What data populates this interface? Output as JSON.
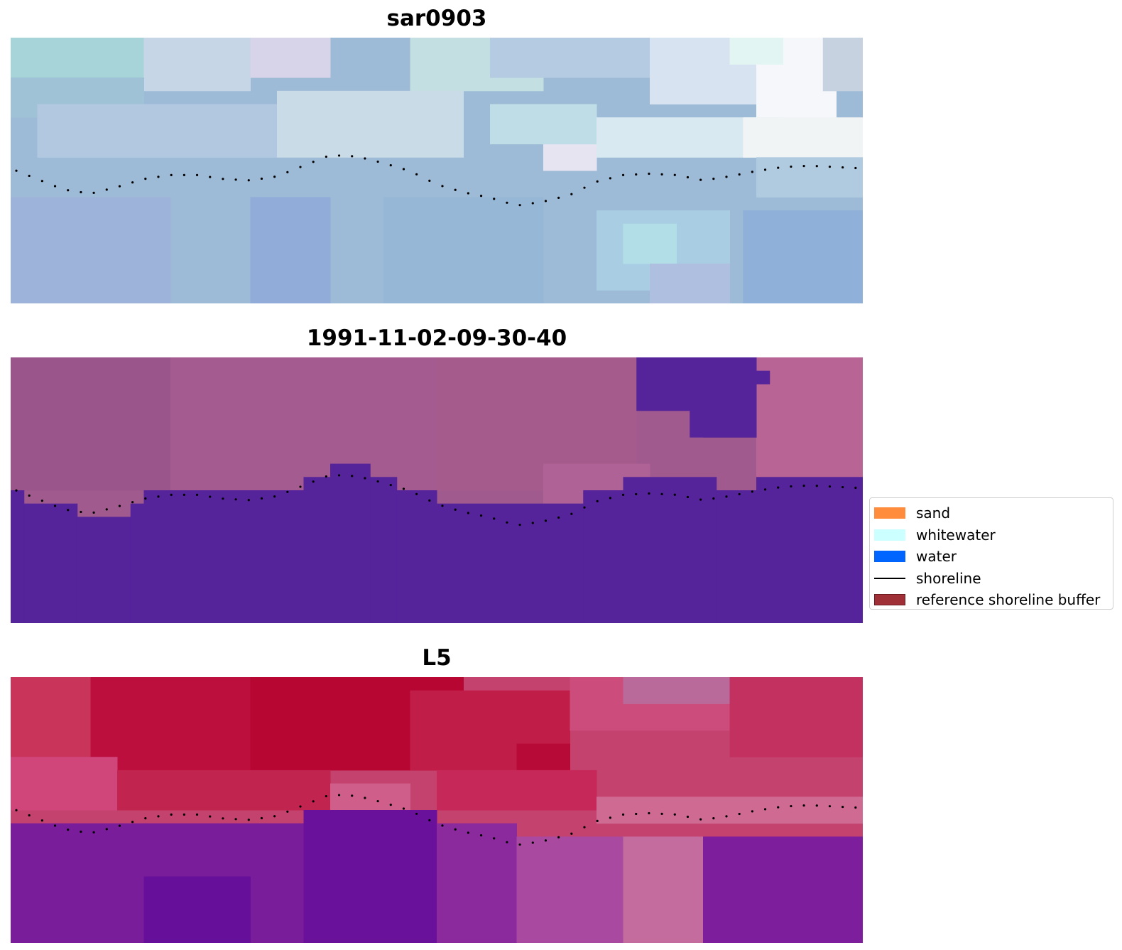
{
  "panels": [
    {
      "title": "sar0903",
      "base_color": "#9dbad6",
      "tiles": [
        {
          "c": "#a7d4d8",
          "cells": [
            [
              0,
              0,
              10,
              3
            ]
          ]
        },
        {
          "c": "#c6d6e6",
          "cells": [
            [
              10,
              0,
              8,
              4
            ]
          ]
        },
        {
          "c": "#d7d3e8",
          "cells": [
            [
              18,
              0,
              6,
              3
            ]
          ]
        },
        {
          "c": "#c3dfe2",
          "cells": [
            [
              30,
              0,
              10,
              4
            ]
          ]
        },
        {
          "c": "#b5cbe1",
          "cells": [
            [
              36,
              0,
              12,
              3
            ]
          ]
        },
        {
          "c": "#d8e3f2",
          "cells": [
            [
              48,
              0,
              8,
              5
            ]
          ]
        },
        {
          "c": "#f5f7fb",
          "cells": [
            [
              56,
              0,
              6,
              6
            ]
          ]
        },
        {
          "c": "#e3f5f2",
          "cells": [
            [
              54,
              0,
              4,
              2
            ]
          ]
        },
        {
          "c": "#c6d2e0",
          "cells": [
            [
              61,
              0,
              3,
              4
            ]
          ]
        },
        {
          "c": "#9fc2d6",
          "cells": [
            [
              0,
              3,
              10,
              3
            ]
          ]
        },
        {
          "c": "#b2c8e1",
          "cells": [
            [
              2,
              5,
              18,
              4
            ]
          ]
        },
        {
          "c": "#c9dbe7",
          "cells": [
            [
              20,
              4,
              14,
              5
            ]
          ]
        },
        {
          "c": "#e7e4f2",
          "cells": [
            [
              40,
              8,
              4,
              2
            ]
          ]
        },
        {
          "c": "#bfdde6",
          "cells": [
            [
              36,
              5,
              8,
              3
            ]
          ]
        },
        {
          "c": "#d9e9f1",
          "cells": [
            [
              44,
              6,
              14,
              3
            ]
          ]
        },
        {
          "c": "#f1f4f4",
          "cells": [
            [
              55,
              6,
              9,
              3
            ]
          ]
        },
        {
          "c": "#b0cbe0",
          "cells": [
            [
              56,
              9,
              8,
              3
            ]
          ]
        },
        {
          "c": "#9eb3da",
          "cells": [
            [
              0,
              12,
              12,
              8
            ]
          ]
        },
        {
          "c": "#91acd8",
          "cells": [
            [
              18,
              12,
              6,
              8
            ]
          ]
        },
        {
          "c": "#96b7d6",
          "cells": [
            [
              28,
              12,
              12,
              8
            ]
          ]
        },
        {
          "c": "#a9cde3",
          "cells": [
            [
              44,
              13,
              10,
              6
            ]
          ]
        },
        {
          "c": "#b2dfe7",
          "cells": [
            [
              46,
              14,
              4,
              3
            ]
          ]
        },
        {
          "c": "#8fb0d9",
          "cells": [
            [
              55,
              13,
              9,
              7
            ]
          ]
        },
        {
          "c": "#aebfe0",
          "cells": [
            [
              48,
              17,
              6,
              3
            ]
          ]
        }
      ]
    },
    {
      "title": "1991-11-02-09-30-40",
      "base_color": "#a05a8e",
      "tiles": [
        {
          "c": "#9a558a",
          "cells": [
            [
              0,
              0,
              12,
              10
            ]
          ]
        },
        {
          "c": "#a45b8f",
          "cells": [
            [
              12,
              0,
              20,
              10
            ]
          ]
        },
        {
          "c": "#a65b8d",
          "cells": [
            [
              32,
              0,
              15,
              10
            ]
          ]
        },
        {
          "c": "#b86596",
          "cells": [
            [
              56,
              0,
              8,
              10
            ]
          ]
        },
        {
          "c": "#ae6295",
          "cells": [
            [
              40,
              8,
              8,
              3
            ]
          ]
        },
        {
          "c": "#55239a",
          "cells": [
            [
              47,
              0,
              9,
              4
            ],
            [
              51,
              4,
              5,
              2
            ],
            [
              56,
              1,
              1,
              1
            ],
            [
              52,
              5,
              4,
              1
            ]
          ]
        },
        {
          "c": "#55239a",
          "cells": [
            [
              0,
              10,
              1,
              10
            ],
            [
              1,
              11,
              4,
              9
            ],
            [
              5,
              12,
              4,
              8
            ],
            [
              9,
              11,
              1,
              9
            ],
            [
              10,
              10,
              12,
              10
            ],
            [
              22,
              9,
              2,
              11
            ],
            [
              24,
              8,
              3,
              12
            ],
            [
              27,
              9,
              2,
              11
            ],
            [
              29,
              10,
              3,
              10
            ],
            [
              32,
              11,
              11,
              9
            ],
            [
              43,
              10,
              3,
              10
            ],
            [
              46,
              9,
              7,
              11
            ],
            [
              53,
              10,
              3,
              10
            ],
            [
              56,
              9,
              8,
              11
            ]
          ]
        }
      ]
    },
    {
      "title": "L5",
      "base_color": "#c4426e",
      "tiles": [
        {
          "c": "#c9345a",
          "cells": [
            [
              0,
              0,
              8,
              6
            ]
          ]
        },
        {
          "c": "#bd0f3d",
          "cells": [
            [
              6,
              0,
              12,
              7
            ]
          ]
        },
        {
          "c": "#b80633",
          "cells": [
            [
              18,
              0,
              16,
              7
            ]
          ]
        },
        {
          "c": "#c01e48",
          "cells": [
            [
              30,
              1,
              12,
              6
            ]
          ]
        },
        {
          "c": "#b80a37",
          "cells": [
            [
              38,
              5,
              4,
              3
            ]
          ]
        },
        {
          "c": "#cc4d7b",
          "cells": [
            [
              42,
              0,
              14,
              4
            ]
          ]
        },
        {
          "c": "#ba6a9a",
          "cells": [
            [
              46,
              0,
              8,
              2
            ]
          ]
        },
        {
          "c": "#c33161",
          "cells": [
            [
              54,
              0,
              10,
              6
            ]
          ]
        },
        {
          "c": "#d0467a",
          "cells": [
            [
              0,
              6,
              8,
              4
            ]
          ]
        },
        {
          "c": "#c0244f",
          "cells": [
            [
              8,
              7,
              16,
              3
            ]
          ]
        },
        {
          "c": "#cf5e8a",
          "cells": [
            [
              24,
              8,
              6,
              3
            ]
          ]
        },
        {
          "c": "#c6285a",
          "cells": [
            [
              32,
              7,
              12,
              3
            ]
          ]
        },
        {
          "c": "#cf6a93",
          "cells": [
            [
              44,
              9,
              20,
              2
            ]
          ]
        },
        {
          "c": "#7a1d9a",
          "cells": [
            [
              0,
              11,
              24,
              9
            ]
          ]
        },
        {
          "c": "#6a119c",
          "cells": [
            [
              22,
              10,
              10,
              10
            ]
          ]
        },
        {
          "c": "#8a2a9c",
          "cells": [
            [
              32,
              11,
              6,
              9
            ]
          ]
        },
        {
          "c": "#a94aa0",
          "cells": [
            [
              38,
              12,
              8,
              8
            ]
          ]
        },
        {
          "c": "#c56c9e",
          "cells": [
            [
              46,
              12,
              6,
              8
            ]
          ]
        },
        {
          "c": "#7d1f9c",
          "cells": [
            [
              52,
              12,
              12,
              8
            ]
          ]
        },
        {
          "c": "#650f9a",
          "cells": [
            [
              10,
              15,
              8,
              5
            ]
          ]
        }
      ]
    }
  ],
  "shoreline": {
    "color": "#000000",
    "points": [
      [
        0,
        10.0
      ],
      [
        2,
        10.8
      ],
      [
        4,
        11.6
      ],
      [
        6,
        11.9
      ],
      [
        8,
        11.4
      ],
      [
        10,
        10.8
      ],
      [
        12,
        10.5
      ],
      [
        14,
        10.5
      ],
      [
        16,
        10.8
      ],
      [
        18,
        10.9
      ],
      [
        20,
        10.6
      ],
      [
        22,
        9.8
      ],
      [
        24,
        9.0
      ],
      [
        26,
        9.1
      ],
      [
        28,
        9.6
      ],
      [
        30,
        10.2
      ],
      [
        32,
        11.2
      ],
      [
        34,
        11.8
      ],
      [
        36,
        12.2
      ],
      [
        38,
        12.8
      ],
      [
        40,
        12.5
      ],
      [
        42,
        12.0
      ],
      [
        44,
        11.0
      ],
      [
        46,
        10.5
      ],
      [
        48,
        10.4
      ],
      [
        50,
        10.5
      ],
      [
        52,
        10.9
      ],
      [
        54,
        10.6
      ],
      [
        56,
        10.2
      ],
      [
        58,
        9.9
      ],
      [
        60,
        9.8
      ],
      [
        62,
        9.9
      ],
      [
        64,
        10.0
      ]
    ]
  },
  "legend": [
    {
      "label": "sand",
      "type": "patch",
      "color": "#ff8c3c",
      "edge": "#ff8c3c"
    },
    {
      "label": "whitewater",
      "type": "patch",
      "color": "#ccffff",
      "edge": "#ccffff"
    },
    {
      "label": "water",
      "type": "patch",
      "color": "#0064ff",
      "edge": "#0064ff"
    },
    {
      "label": "shoreline",
      "type": "line",
      "color": "#000000"
    },
    {
      "label": "reference shoreline buffer",
      "type": "patch",
      "color": "#a03038",
      "edge": "#6b1a20"
    }
  ]
}
